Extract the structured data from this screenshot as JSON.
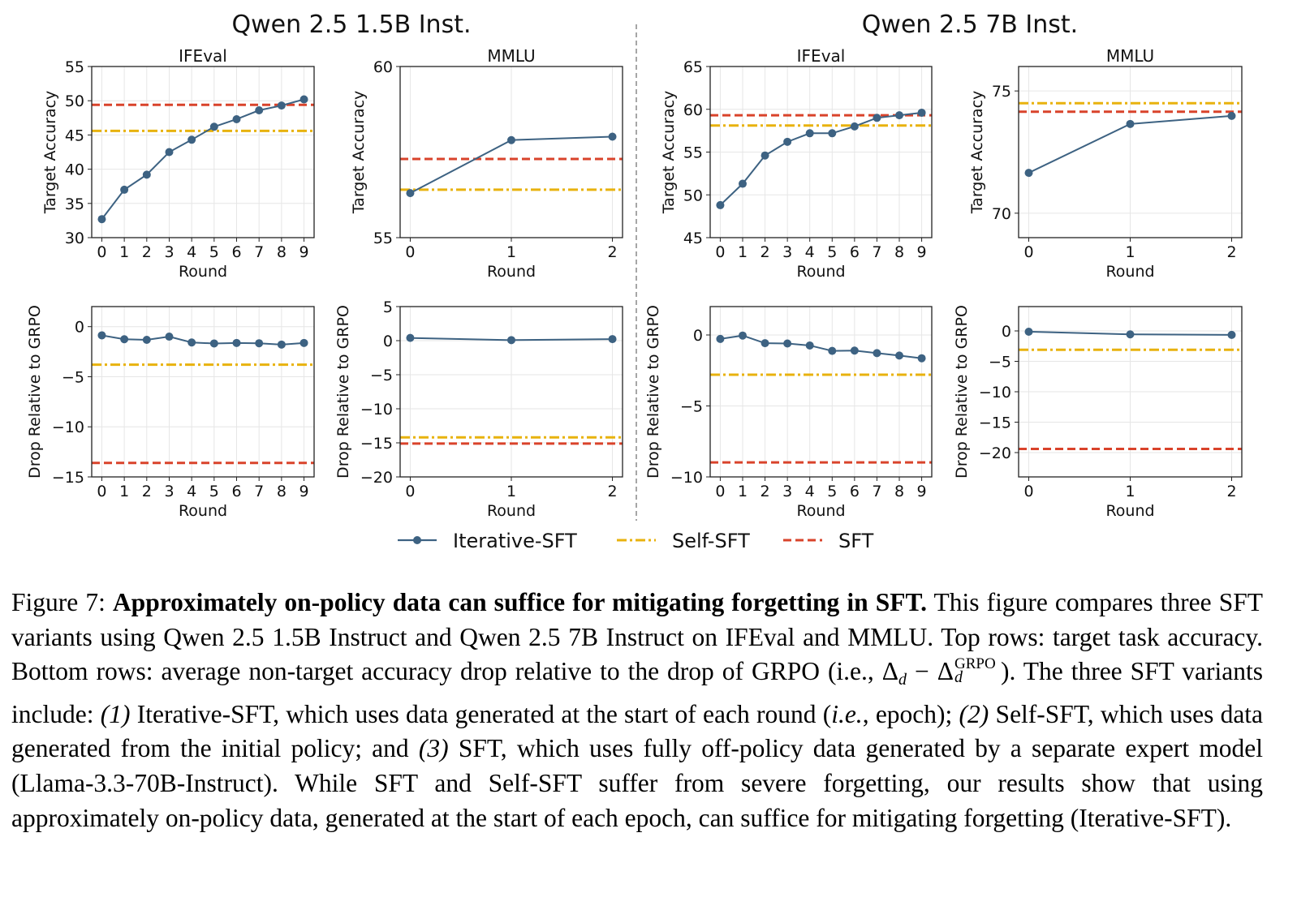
{
  "figure": {
    "group_titles": [
      "Qwen 2.5 1.5B Inst.",
      "Qwen 2.5 7B Inst."
    ],
    "legend": [
      {
        "label": "Iterative-SFT",
        "color": "#3d6282",
        "style": "solid-marker"
      },
      {
        "label": "Self-SFT",
        "color": "#e8b20e",
        "style": "dash-dot"
      },
      {
        "label": "SFT",
        "color": "#d9432b",
        "style": "dashed"
      }
    ]
  },
  "chart_data": [
    {
      "type": "line",
      "group": "Qwen 2.5 1.5B Inst.",
      "title": "IFEval",
      "xlabel": "Round",
      "ylabel": "Target Accuracy",
      "x": [
        0,
        1,
        2,
        3,
        4,
        5,
        6,
        7,
        8,
        9
      ],
      "ylim": [
        30,
        55
      ],
      "yticks": [
        30,
        35,
        40,
        45,
        50,
        55
      ],
      "series": [
        {
          "name": "Iterative-SFT",
          "values": [
            32.7,
            37.0,
            39.2,
            42.5,
            44.3,
            46.2,
            47.3,
            48.6,
            49.3,
            50.2
          ]
        }
      ],
      "hlines": [
        {
          "name": "Self-SFT",
          "value": 45.6
        },
        {
          "name": "SFT",
          "value": 49.4
        }
      ]
    },
    {
      "type": "line",
      "group": "Qwen 2.5 1.5B Inst.",
      "title": "MMLU",
      "xlabel": "Round",
      "ylabel": "Target Accuracy",
      "x": [
        0,
        1,
        2
      ],
      "ylim": [
        55,
        60
      ],
      "yticks": [
        55,
        60
      ],
      "series": [
        {
          "name": "Iterative-SFT",
          "values": [
            56.3,
            57.85,
            57.95
          ]
        }
      ],
      "hlines": [
        {
          "name": "Self-SFT",
          "value": 56.4
        },
        {
          "name": "SFT",
          "value": 57.3
        }
      ]
    },
    {
      "type": "line",
      "group": "Qwen 2.5 7B Inst.",
      "title": "IFEval",
      "xlabel": "Round",
      "ylabel": "Target Accuracy",
      "x": [
        0,
        1,
        2,
        3,
        4,
        5,
        6,
        7,
        8,
        9
      ],
      "ylim": [
        45,
        65
      ],
      "yticks": [
        45,
        50,
        55,
        60,
        65
      ],
      "series": [
        {
          "name": "Iterative-SFT",
          "values": [
            48.8,
            51.3,
            54.6,
            56.2,
            57.2,
            57.2,
            58.0,
            59.0,
            59.3,
            59.6
          ]
        }
      ],
      "hlines": [
        {
          "name": "Self-SFT",
          "value": 58.1
        },
        {
          "name": "SFT",
          "value": 59.3
        }
      ]
    },
    {
      "type": "line",
      "group": "Qwen 2.5 7B Inst.",
      "title": "MMLU",
      "xlabel": "Round",
      "ylabel": "Target Accuracy",
      "x": [
        0,
        1,
        2
      ],
      "ylim": [
        69,
        76
      ],
      "yticks": [
        70,
        75
      ],
      "series": [
        {
          "name": "Iterative-SFT",
          "values": [
            71.65,
            73.65,
            73.98
          ]
        }
      ],
      "hlines": [
        {
          "name": "Self-SFT",
          "value": 74.5
        },
        {
          "name": "SFT",
          "value": 74.15
        }
      ]
    },
    {
      "type": "line",
      "group": "Qwen 2.5 1.5B Inst.",
      "title": "",
      "xlabel": "Round",
      "ylabel": "Drop Relative to GRPO",
      "x": [
        0,
        1,
        2,
        3,
        4,
        5,
        6,
        7,
        8,
        9
      ],
      "ylim": [
        -15,
        2
      ],
      "yticks": [
        -15,
        -10,
        -5,
        0
      ],
      "series": [
        {
          "name": "Iterative-SFT",
          "values": [
            -0.87,
            -1.26,
            -1.32,
            -1.0,
            -1.58,
            -1.68,
            -1.63,
            -1.66,
            -1.79,
            -1.63
          ]
        }
      ],
      "hlines": [
        {
          "name": "Self-SFT",
          "value": -3.8
        },
        {
          "name": "SFT",
          "value": -13.6
        }
      ]
    },
    {
      "type": "line",
      "group": "Qwen 2.5 1.5B Inst.",
      "title": "",
      "xlabel": "Round",
      "ylabel": "Drop Relative to GRPO",
      "x": [
        0,
        1,
        2
      ],
      "ylim": [
        -20,
        5
      ],
      "yticks": [
        -20,
        -15,
        -10,
        -5,
        0,
        5
      ],
      "series": [
        {
          "name": "Iterative-SFT",
          "values": [
            0.4,
            0.08,
            0.23
          ]
        }
      ],
      "hlines": [
        {
          "name": "Self-SFT",
          "value": -14.2
        },
        {
          "name": "SFT",
          "value": -15.1
        }
      ]
    },
    {
      "type": "line",
      "group": "Qwen 2.5 7B Inst.",
      "title": "",
      "xlabel": "Round",
      "ylabel": "Drop Relative to GRPO",
      "x": [
        0,
        1,
        2,
        3,
        4,
        5,
        6,
        7,
        8,
        9
      ],
      "ylim": [
        -10,
        2
      ],
      "yticks": [
        -10,
        -5,
        0
      ],
      "series": [
        {
          "name": "Iterative-SFT",
          "values": [
            -0.28,
            -0.04,
            -0.58,
            -0.6,
            -0.74,
            -1.12,
            -1.1,
            -1.28,
            -1.45,
            -1.64
          ]
        }
      ],
      "hlines": [
        {
          "name": "Self-SFT",
          "value": -2.8
        },
        {
          "name": "SFT",
          "value": -8.98
        }
      ]
    },
    {
      "type": "line",
      "group": "Qwen 2.5 7B Inst.",
      "title": "",
      "xlabel": "Round",
      "ylabel": "Drop Relative to GRPO",
      "x": [
        0,
        1,
        2
      ],
      "ylim": [
        -24,
        4
      ],
      "yticks": [
        -20,
        -15,
        -10,
        -5,
        0
      ],
      "series": [
        {
          "name": "Iterative-SFT",
          "values": [
            -0.13,
            -0.57,
            -0.65
          ]
        }
      ],
      "hlines": [
        {
          "name": "Self-SFT",
          "value": -3.1
        },
        {
          "name": "SFT",
          "value": -19.4
        }
      ]
    }
  ],
  "caption": {
    "label": "Figure 7:",
    "bold": "Approximately on-policy data can suffice for mitigating forgetting in SFT.",
    "t1": "This figure compares three SFT variants using Qwen 2.5 1.5B Instruct and Qwen 2.5 7B Instruct on IFEval and MMLU. Top rows: target task accuracy. Bottom rows: average non-target accuracy drop relative to the drop of GRPO (i.e., ",
    "delta": "Δ",
    "sub_d": "d",
    "minus": " − ",
    "sup_grpo": "GRPO",
    "t2": "). The three SFT variants include:",
    "i1": "(1)",
    "t3": "Iterative-SFT, which uses data generated at the start of each round (",
    "ie": "i.e.",
    "t4": ", epoch);",
    "i2": "(2)",
    "t5": "Self-SFT, which uses data generated from the initial policy; and",
    "i3": "(3)",
    "t6": "SFT, which uses fully off-policy data generated by a separate expert model (Llama-3.3-70B-Instruct). While SFT and Self-SFT suffer from severe forgetting, our results show that using approximately on-policy data, generated at the start of each epoch, can suffice for mitigating forgetting (Iterative-SFT)."
  }
}
